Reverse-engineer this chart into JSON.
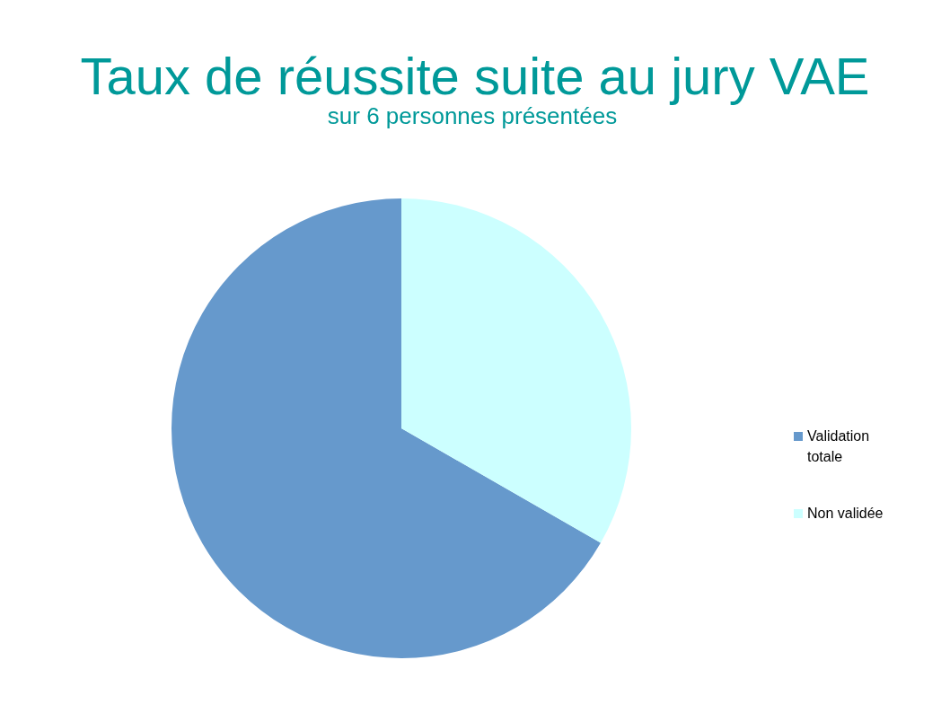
{
  "chart_data": {
    "type": "pie",
    "title": "Taux de réussite suite au jury VAE",
    "subtitle": "sur 6 personnes présentées",
    "categories": [
      "Validation totale",
      "Non validée"
    ],
    "values": [
      66.7,
      33.3
    ],
    "colors": [
      "#6699cc",
      "#ccffff"
    ],
    "legend": "right"
  }
}
